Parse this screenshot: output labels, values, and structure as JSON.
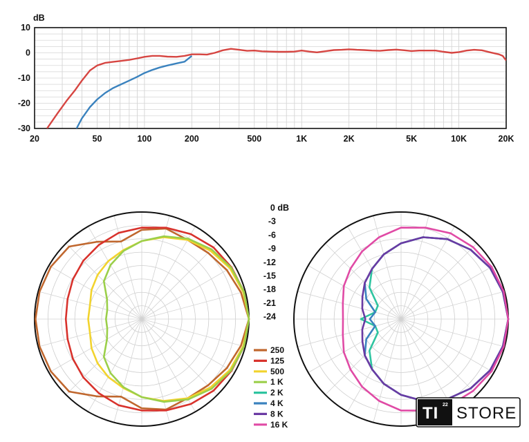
{
  "chart_data": [
    {
      "type": "line",
      "ylabel": "dB",
      "xscale": "log",
      "xlim": [
        20,
        20000
      ],
      "ylim": [
        -30,
        10
      ],
      "y_ticks": [
        10,
        0,
        -10,
        -20,
        -30
      ],
      "x_ticks": [
        20,
        50,
        100,
        200,
        500,
        1000,
        2000,
        5000,
        10000,
        20000
      ],
      "x_tick_labels": [
        "20",
        "50",
        "100",
        "200",
        "500",
        "1K",
        "2K",
        "5K",
        "10K",
        "20K"
      ],
      "grid": true,
      "series": [
        {
          "color": "#d64541",
          "x": [
            24,
            28,
            32,
            36,
            40,
            45,
            50,
            56,
            63,
            71,
            80,
            90,
            100,
            112,
            125,
            140,
            160,
            180,
            200,
            225,
            250,
            280,
            315,
            355,
            400,
            450,
            500,
            560,
            630,
            710,
            800,
            900,
            1000,
            1120,
            1250,
            1400,
            1600,
            1800,
            2000,
            2240,
            2500,
            2800,
            3150,
            3550,
            4000,
            4500,
            5000,
            5600,
            6300,
            7100,
            8000,
            9000,
            10000,
            11200,
            12500,
            14000,
            16000,
            18000,
            19000,
            20000
          ],
          "y": [
            -30,
            -24,
            -19,
            -15,
            -11,
            -7,
            -5,
            -4,
            -3.6,
            -3.2,
            -2.8,
            -2.2,
            -1.6,
            -1.2,
            -1.2,
            -1.5,
            -1.6,
            -1.2,
            -0.6,
            -0.6,
            -0.7,
            0,
            1,
            1.6,
            1.2,
            0.8,
            0.9,
            0.6,
            0.5,
            0.4,
            0.4,
            0.5,
            0.9,
            0.5,
            0.2,
            0.6,
            1.1,
            1.2,
            1.4,
            1.2,
            1.1,
            0.9,
            0.8,
            1.1,
            1.3,
            1.0,
            0.7,
            0.9,
            0.9,
            0.9,
            0.4,
            0,
            0.3,
            0.9,
            1.2,
            1.0,
            0.1,
            -0.6,
            -1.2,
            -3
          ]
        },
        {
          "color": "#3a82be",
          "x": [
            37,
            40,
            45,
            50,
            56,
            63,
            71,
            80,
            90,
            100,
            112,
            125,
            140,
            160,
            180,
            200
          ],
          "y": [
            -30,
            -26,
            -21.5,
            -18.5,
            -16,
            -14,
            -12.5,
            -11,
            -9.5,
            -8,
            -6.8,
            -5.8,
            -5,
            -4.2,
            -3.5,
            -1.2
          ]
        }
      ]
    },
    {
      "type": "polar",
      "r_labels": [
        "0 dB",
        "-3",
        "-6",
        "-9",
        "-12",
        "-15",
        "-18",
        "-21",
        "-24"
      ],
      "r_unit": "dB",
      "r_range": [
        -24,
        0
      ],
      "legend": [
        {
          "label": "250",
          "color": "#c0672e"
        },
        {
          "label": "125",
          "color": "#d8322c"
        },
        {
          "label": "500",
          "color": "#f2d32e"
        },
        {
          "label": "1 K",
          "color": "#9bcf4a"
        },
        {
          "label": "2 K",
          "color": "#2ec4a0"
        },
        {
          "label": "4 K",
          "color": "#3a82be"
        },
        {
          "label": "8 K",
          "color": "#6a3aa3"
        },
        {
          "label": "16 K",
          "color": "#e04aa5"
        }
      ],
      "left_polar_series": [
        "250",
        "125",
        "500",
        "1 K"
      ],
      "right_polar_series": [
        "2 K",
        "4 K",
        "8 K",
        "16 K"
      ],
      "patterns_db": {
        "250": {
          "angles_deg": [
            0,
            15,
            30,
            45,
            60,
            75,
            90,
            105,
            120,
            135,
            150,
            165,
            180
          ],
          "db": [
            0,
            -1,
            -2,
            -3,
            -3.5,
            -3,
            -4,
            -6,
            -4,
            -1,
            -0.5,
            -0.3,
            -0.2
          ]
        },
        "125": {
          "angles_deg": [
            0,
            15,
            30,
            45,
            60,
            75,
            90,
            105,
            120,
            135,
            150,
            165,
            180
          ],
          "db": [
            0,
            -0.3,
            -0.8,
            -1.3,
            -2,
            -2.8,
            -3.5,
            -4,
            -4.8,
            -5.5,
            -6.2,
            -6.8,
            -7
          ]
        },
        "500": {
          "angles_deg": [
            0,
            15,
            30,
            45,
            60,
            75,
            90,
            105,
            120,
            135,
            150,
            165,
            180
          ],
          "db": [
            0,
            -0.5,
            -1.2,
            -2.3,
            -3.5,
            -5,
            -6.5,
            -8,
            -9,
            -10,
            -11,
            -12,
            -12
          ]
        },
        "1 K": {
          "angles_deg": [
            0,
            15,
            30,
            45,
            60,
            75,
            90,
            105,
            120,
            135,
            150,
            165,
            180
          ],
          "db": [
            0,
            -0.3,
            -0.9,
            -1.9,
            -3.2,
            -4.8,
            -6.5,
            -8.2,
            -10,
            -12,
            -15,
            -16,
            -16
          ]
        },
        "2 K": {
          "angles_deg": [
            0,
            15,
            30,
            45,
            60,
            75,
            90,
            105,
            120,
            135,
            150,
            165,
            180
          ],
          "db": [
            0,
            -0.4,
            -1,
            -2,
            -3.3,
            -5,
            -7,
            -9,
            -11,
            -14,
            -18,
            -18,
            -15
          ]
        },
        "4 K": {
          "angles_deg": [
            0,
            15,
            30,
            45,
            60,
            75,
            90,
            105,
            120,
            135,
            150,
            165,
            180
          ],
          "db": [
            0,
            -0.4,
            -1,
            -2,
            -3.3,
            -5,
            -7,
            -9,
            -11,
            -12.5,
            -15,
            -18,
            -17
          ]
        },
        "8 K": {
          "angles_deg": [
            0,
            15,
            30,
            45,
            60,
            75,
            90,
            105,
            120,
            135,
            150,
            165,
            180
          ],
          "db": [
            0,
            -0.4,
            -1,
            -2,
            -3.3,
            -5,
            -7,
            -9,
            -11,
            -12.5,
            -14,
            -15,
            -16
          ]
        },
        "16 K": {
          "angles_deg": [
            0,
            15,
            30,
            45,
            60,
            75,
            90,
            105,
            120,
            135,
            150,
            165,
            180
          ],
          "db": [
            0,
            -0.2,
            -0.6,
            -1.2,
            -1.8,
            -2.8,
            -3.5,
            -5,
            -6.5,
            -8,
            -9.2,
            -10.5,
            -11
          ]
        }
      }
    }
  ],
  "logo": {
    "badge": "TI",
    "superscript": "22",
    "text": "STORE"
  }
}
